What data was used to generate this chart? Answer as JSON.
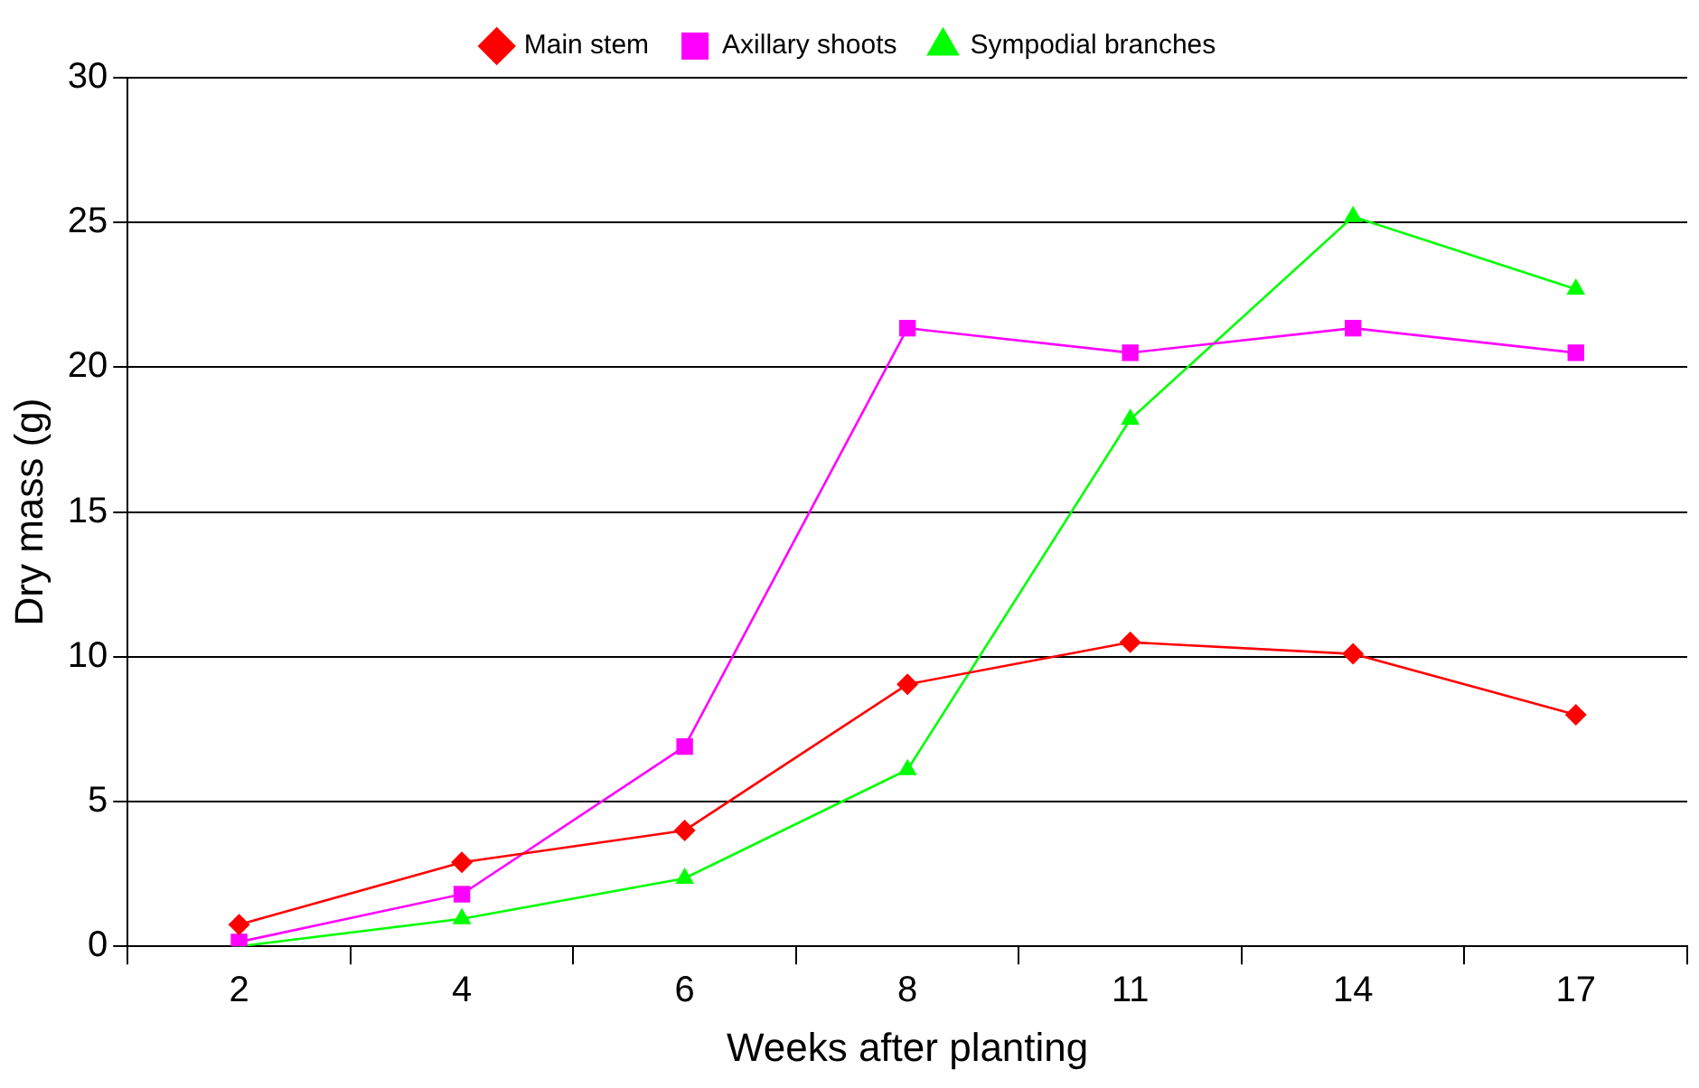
{
  "chart_data": {
    "type": "line",
    "xlabel": "Weeks after planting",
    "ylabel": "Dry mass (g)",
    "categories": [
      "2",
      "4",
      "6",
      "8",
      "11",
      "14",
      "17"
    ],
    "series": [
      {
        "name": "Main stem",
        "color": "#ff0000",
        "marker": "diamond",
        "values": [
          0.75,
          2.9,
          4.0,
          9.05,
          10.5,
          10.1,
          8.0
        ]
      },
      {
        "name": "Axillary shoots",
        "color": "#ff00ff",
        "marker": "square",
        "values": [
          0.15,
          1.8,
          6.9,
          21.35,
          20.5,
          21.35,
          20.5
        ]
      },
      {
        "name": "Sympodial branches",
        "color": "#00ff00",
        "marker": "triangle",
        "values": [
          0,
          0.95,
          2.35,
          6.1,
          18.2,
          25.2,
          22.7
        ]
      }
    ],
    "ylim": [
      0,
      30
    ],
    "yticks": [
      0,
      5,
      10,
      15,
      20,
      25,
      30
    ],
    "grid": "y",
    "legend": "top",
    "line_style": "solid"
  }
}
